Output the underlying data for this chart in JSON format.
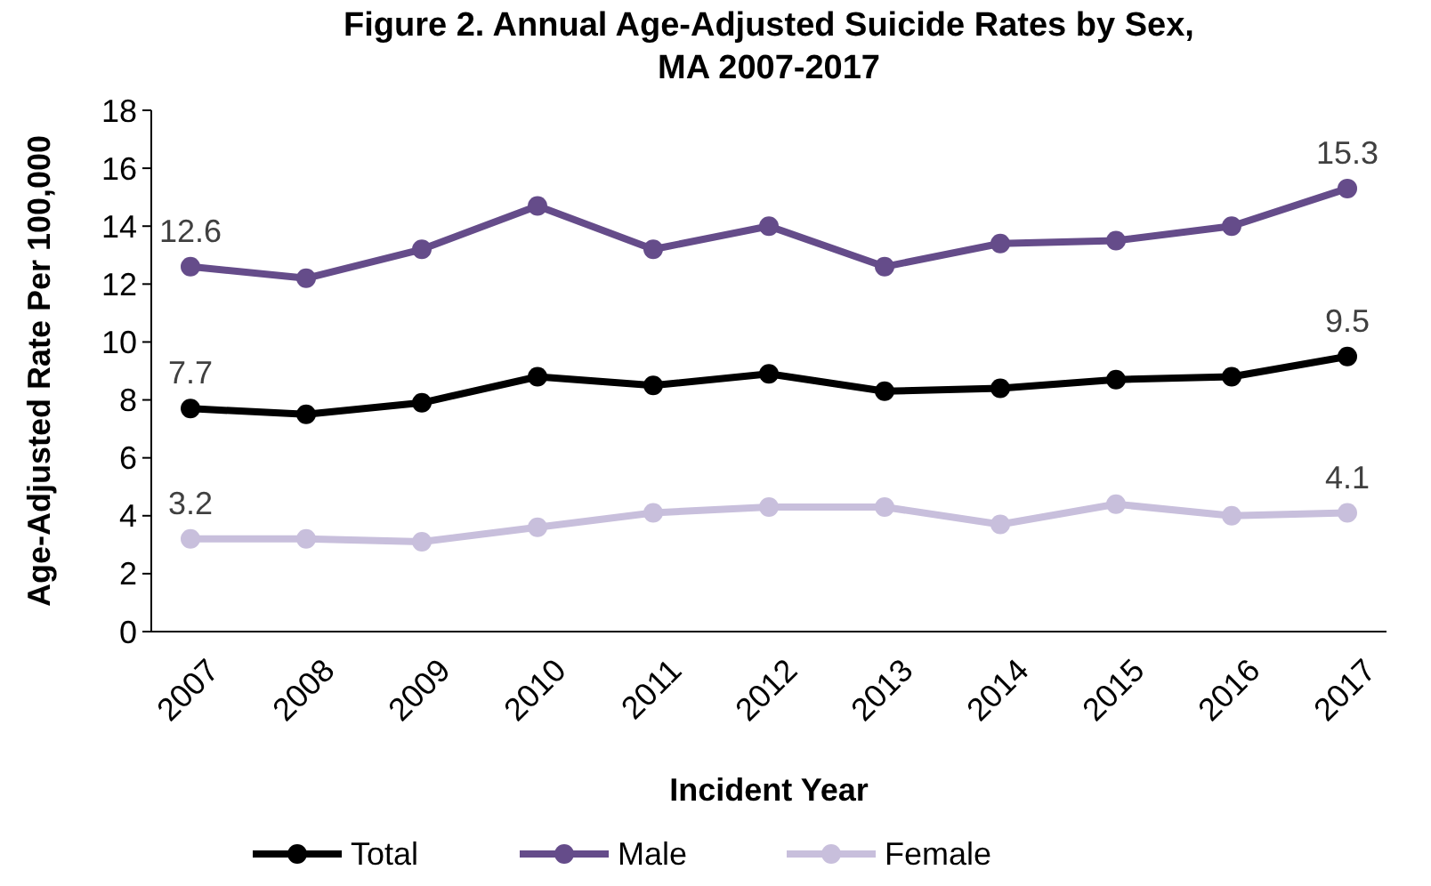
{
  "chart_data": {
    "type": "line",
    "title": "Figure 2. Annual Age-Adjusted Suicide Rates by Sex, MA 2007-2017",
    "xlabel": "Incident Year",
    "ylabel": "Age-Adjusted Rate Per 100,000",
    "categories": [
      "2007",
      "2008",
      "2009",
      "2010",
      "2011",
      "2012",
      "2013",
      "2014",
      "2015",
      "2016",
      "2017"
    ],
    "series": [
      {
        "name": "Total",
        "color": "#000000",
        "values": [
          7.7,
          7.5,
          7.9,
          8.8,
          8.5,
          8.9,
          8.3,
          8.4,
          8.7,
          8.8,
          9.5
        ],
        "value_labels": [
          "7.7",
          null,
          null,
          null,
          null,
          null,
          null,
          null,
          null,
          null,
          "9.5"
        ]
      },
      {
        "name": "Male",
        "color": "#654c8a",
        "values": [
          12.6,
          12.2,
          13.2,
          14.7,
          13.2,
          14.0,
          12.6,
          13.4,
          13.5,
          14.0,
          15.3
        ],
        "value_labels": [
          "12.6",
          null,
          null,
          null,
          null,
          null,
          null,
          null,
          null,
          null,
          "15.3"
        ]
      },
      {
        "name": "Female",
        "color": "#c8bfdc",
        "values": [
          3.2,
          3.2,
          3.1,
          3.6,
          4.1,
          4.3,
          4.3,
          3.7,
          4.4,
          4.0,
          4.1
        ],
        "value_labels": [
          "3.2",
          null,
          null,
          null,
          null,
          null,
          null,
          null,
          null,
          null,
          "4.1"
        ]
      }
    ],
    "ylim": [
      0,
      18
    ],
    "yticks": [
      0,
      2,
      4,
      6,
      8,
      10,
      12,
      14,
      16,
      18
    ],
    "grid": false,
    "legend": "bottom",
    "marker": "circle",
    "line_style": "solid"
  }
}
